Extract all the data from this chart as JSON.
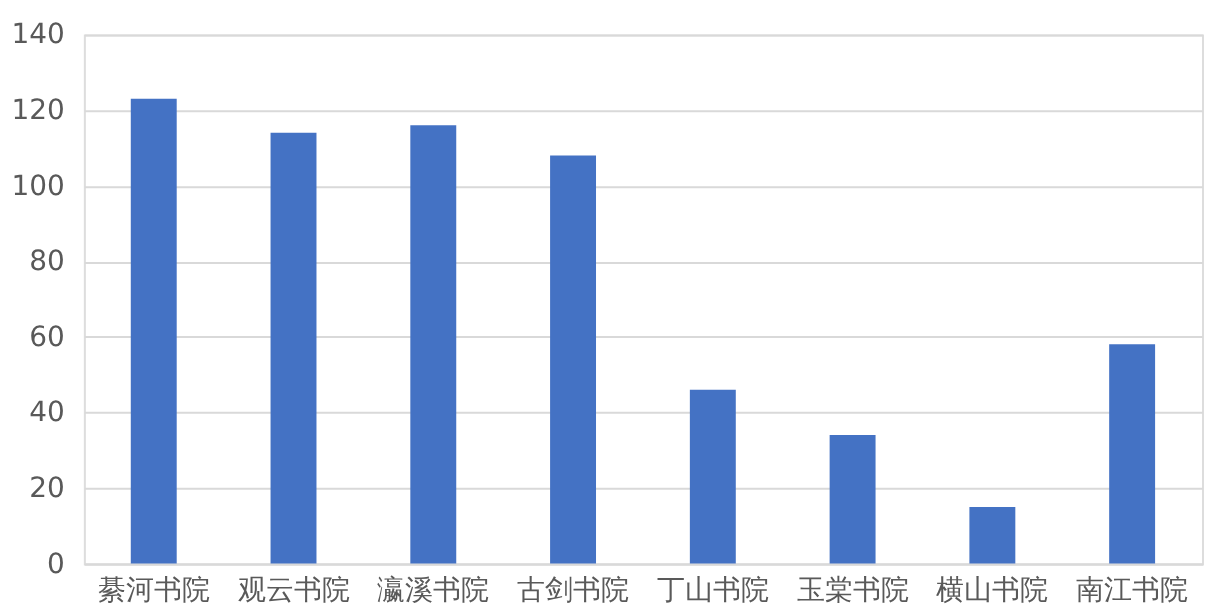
{
  "chart_data": {
    "type": "bar",
    "categories": [
      "綦河书院",
      "观云书院",
      "瀛溪书院",
      "古剑书院",
      "丁山书院",
      "玉棠书院",
      "横山书院",
      "南江书院"
    ],
    "values": [
      123,
      114,
      116,
      108,
      46,
      34,
      15,
      58
    ],
    "color": "#4472c4",
    "ylim": [
      0,
      140
    ],
    "yticks": [
      0,
      20,
      40,
      60,
      80,
      100,
      120,
      140
    ],
    "grid": "y"
  }
}
